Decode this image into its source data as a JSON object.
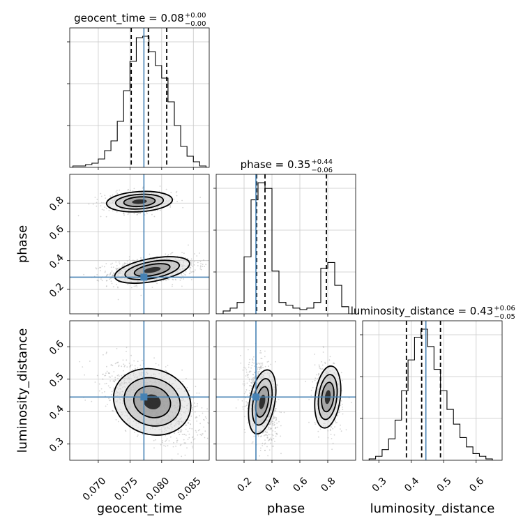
{
  "chart_data": {
    "type": "corner",
    "parameters": [
      "geocent_time",
      "phase",
      "luminosity_distance"
    ],
    "truth": {
      "geocent_time": 0.0772,
      "phase": 0.285,
      "luminosity_distance": 0.445
    },
    "colors": {
      "truth": "#4682b4",
      "hist": "#000000",
      "grid": "#c8c8c8",
      "points": "#b0b0b0"
    },
    "grid": true,
    "diagonal": [
      {
        "param": "geocent_time",
        "title_main": "geocent_time = 0.08",
        "title_plus": "+0.00",
        "title_minus": "−0.00",
        "xlim": [
          0.0655,
          0.0875
        ],
        "quantiles": [
          0.0752,
          0.0779,
          0.0808
        ],
        "bin_edges": [
          0.066,
          0.067,
          0.068,
          0.069,
          0.07,
          0.071,
          0.072,
          0.073,
          0.074,
          0.075,
          0.076,
          0.077,
          0.078,
          0.079,
          0.08,
          0.081,
          0.082,
          0.083,
          0.084,
          0.085,
          0.086,
          0.087
        ],
        "counts": [
          0.01,
          0.01,
          0.02,
          0.03,
          0.06,
          0.12,
          0.19,
          0.33,
          0.55,
          0.76,
          0.93,
          0.94,
          0.83,
          0.73,
          0.64,
          0.47,
          0.3,
          0.15,
          0.08,
          0.04,
          0.01
        ]
      },
      {
        "param": "phase",
        "title_main": "phase = 0.35",
        "title_plus": "+0.44",
        "title_minus": "−0.06",
        "xlim": [
          0.0,
          1.0
        ],
        "quantiles": [
          0.29,
          0.35,
          0.79
        ],
        "bin_edges": [
          0.0,
          0.05,
          0.1,
          0.15,
          0.2,
          0.25,
          0.3,
          0.35,
          0.4,
          0.45,
          0.5,
          0.55,
          0.6,
          0.65,
          0.7,
          0.75,
          0.8,
          0.85,
          0.9,
          0.95,
          1.0
        ],
        "counts": [
          0.0,
          0.02,
          0.04,
          0.08,
          0.4,
          0.8,
          0.92,
          0.88,
          0.3,
          0.08,
          0.06,
          0.04,
          0.03,
          0.04,
          0.08,
          0.32,
          0.36,
          0.2,
          0.05,
          0.0
        ]
      },
      {
        "param": "luminosity_distance",
        "title_main": "luminosity_distance = 0.43",
        "title_plus": "+0.06",
        "title_minus": "−0.05",
        "xlim": [
          0.25,
          0.68
        ],
        "quantiles": [
          0.385,
          0.432,
          0.49
        ],
        "bin_edges": [
          0.27,
          0.29,
          0.31,
          0.33,
          0.35,
          0.37,
          0.39,
          0.41,
          0.43,
          0.45,
          0.47,
          0.49,
          0.51,
          0.53,
          0.55,
          0.57,
          0.59,
          0.61,
          0.63,
          0.65
        ],
        "counts": [
          0.01,
          0.03,
          0.08,
          0.16,
          0.3,
          0.52,
          0.75,
          0.92,
          0.98,
          0.85,
          0.68,
          0.52,
          0.38,
          0.27,
          0.17,
          0.1,
          0.05,
          0.03,
          0.01
        ]
      }
    ],
    "scatter_panels": [
      {
        "x": "geocent_time",
        "y": "phase",
        "xlim": [
          0.0655,
          0.0875
        ],
        "ylim": [
          0.03,
          1.0
        ],
        "yticks": [
          0.2,
          0.4,
          0.6,
          0.8
        ],
        "modes": [
          {
            "cx": 0.0785,
            "cy": 0.335,
            "sx": 0.003,
            "sy": 0.04,
            "rho": 0.3,
            "w": 0.72
          },
          {
            "cx": 0.0765,
            "cy": 0.81,
            "sx": 0.0026,
            "sy": 0.035,
            "rho": 0.1,
            "w": 0.28
          }
        ]
      },
      {
        "x": "geocent_time",
        "y": "luminosity_distance",
        "xlim": [
          0.0655,
          0.0875
        ],
        "ylim": [
          0.25,
          0.68
        ],
        "yticks": [
          0.3,
          0.4,
          0.5,
          0.6
        ],
        "modes": [
          {
            "cx": 0.0785,
            "cy": 0.43,
            "sx": 0.0031,
            "sy": 0.05,
            "rho": -0.55,
            "w": 1.0
          }
        ]
      },
      {
        "x": "phase",
        "y": "luminosity_distance",
        "xlim": [
          0.0,
          1.0
        ],
        "ylim": [
          0.25,
          0.68
        ],
        "yticks": [],
        "modes": [
          {
            "cx": 0.33,
            "cy": 0.43,
            "sx": 0.045,
            "sy": 0.05,
            "rho": -0.3,
            "w": 0.72
          },
          {
            "cx": 0.8,
            "cy": 0.445,
            "sx": 0.045,
            "sy": 0.048,
            "rho": -0.2,
            "w": 0.28
          }
        ]
      }
    ],
    "x_ticks": {
      "geocent_time": {
        "values": [
          0.07,
          0.075,
          0.08,
          0.085
        ],
        "labels": [
          "0.070",
          "0.075",
          "0.080",
          "0.085"
        ]
      },
      "phase": {
        "values": [
          0.2,
          0.4,
          0.6,
          0.8
        ],
        "labels": [
          "0.2",
          "0.4",
          "0.6",
          "0.8"
        ]
      },
      "luminosity_distance": {
        "values": [
          0.3,
          0.4,
          0.5,
          0.6
        ],
        "labels": [
          "0.3",
          "0.4",
          "0.5",
          "0.6"
        ]
      }
    },
    "y_tick_labels": {
      "phase": [
        "0.2",
        "0.4",
        "0.6",
        "0.8"
      ],
      "luminosity_distance": [
        "0.3",
        "0.4",
        "0.5",
        "0.6"
      ]
    },
    "xlabels": [
      "geocent_time",
      "phase",
      "luminosity_distance"
    ],
    "ylabels": [
      "phase",
      "luminosity_distance"
    ]
  }
}
